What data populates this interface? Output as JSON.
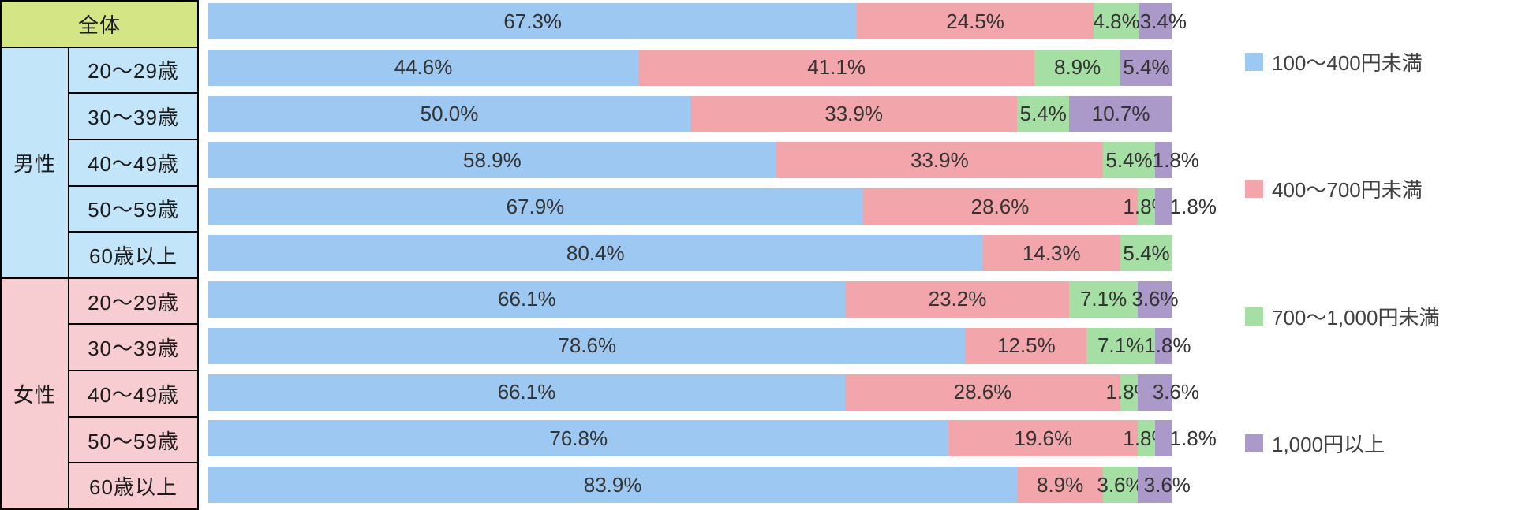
{
  "table": {
    "overall": {
      "label": "全体",
      "bg": "#D4E586"
    },
    "groups": [
      {
        "label": "男性",
        "bg": "#C3E5FA",
        "ages": [
          "20〜29歳",
          "30〜39歳",
          "40〜49歳",
          "50〜59歳",
          "60歳以上"
        ]
      },
      {
        "label": "女性",
        "bg": "#F8CDD1",
        "ages": [
          "20〜29歳",
          "30〜39歳",
          "40〜49歳",
          "50〜59歳",
          "60歳以上"
        ]
      }
    ]
  },
  "chart_data": {
    "type": "bar",
    "stacked": true,
    "orientation": "horizontal",
    "unit": "%",
    "xlim": [
      0,
      100
    ],
    "grid": false,
    "legend_position": "right",
    "categories": [
      "全体",
      "男性 20〜29歳",
      "男性 30〜39歳",
      "男性 40〜49歳",
      "男性 50〜59歳",
      "男性 60歳以上",
      "女性 20〜29歳",
      "女性 30〜39歳",
      "女性 40〜49歳",
      "女性 50〜59歳",
      "女性 60歳以上"
    ],
    "series": [
      {
        "name": "100〜400円未満",
        "color": "#9DC8F1",
        "values": [
          67.3,
          44.6,
          50.0,
          58.9,
          67.9,
          80.4,
          66.1,
          78.6,
          66.1,
          76.8,
          83.9
        ]
      },
      {
        "name": "400〜700円未満",
        "color": "#F2A5AA",
        "values": [
          24.5,
          41.1,
          33.9,
          33.9,
          28.6,
          14.3,
          23.2,
          12.5,
          28.6,
          19.6,
          8.9
        ]
      },
      {
        "name": "700〜1,000円未満",
        "color": "#A6DFA4",
        "values": [
          4.8,
          8.9,
          5.4,
          5.4,
          1.8,
          5.4,
          7.1,
          7.1,
          1.8,
          1.8,
          3.6
        ]
      },
      {
        "name": "1,000円以上",
        "color": "#AB9AC9",
        "values": [
          3.4,
          5.4,
          10.7,
          1.8,
          1.8,
          0,
          3.6,
          1.8,
          3.6,
          1.8,
          3.6
        ]
      }
    ]
  }
}
